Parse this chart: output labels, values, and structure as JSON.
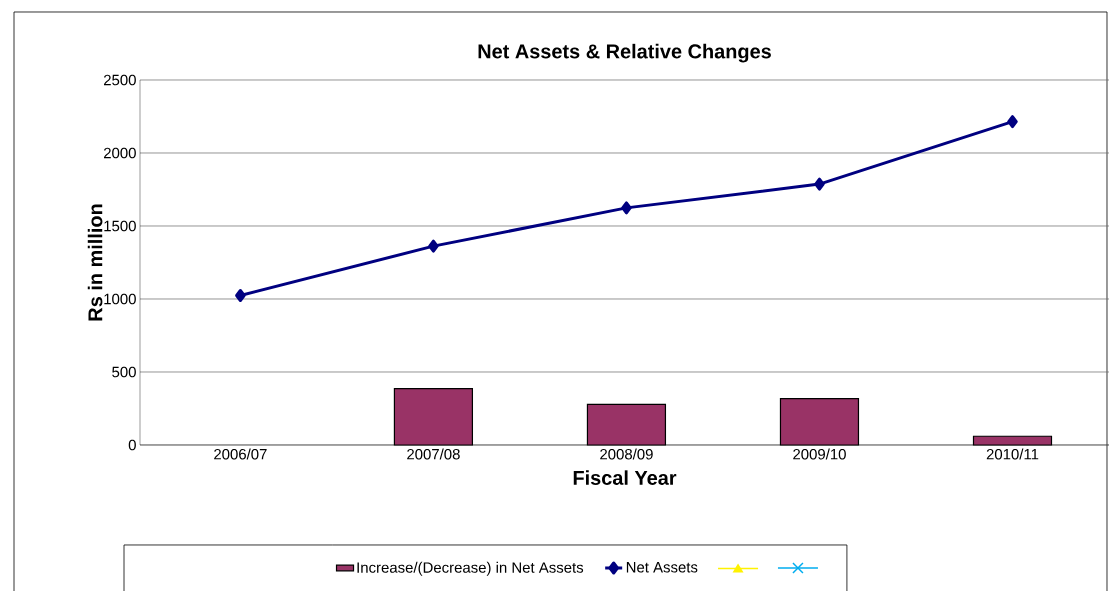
{
  "chart_data": {
    "type": "bar",
    "title": "Net Assets & Relative Changes",
    "xlabel": "Fiscal Year",
    "ylabel": "Rs in million",
    "categories": [
      "2006/07",
      "2007/08",
      "2008/09",
      "2009/10",
      "2010/11"
    ],
    "series": [
      {
        "name": "Increase/(Decrease) in Net Assets",
        "color": "#993366",
        "values": [
          null,
          386,
          278,
          317,
          60
        ]
      },
      {
        "name": "Net Assets",
        "type": "line",
        "color": "#000080",
        "marker": "diamond",
        "values": [
          1024,
          1362,
          1624,
          1787,
          2215
        ]
      }
    ],
    "ylim": [
      0,
      2500
    ],
    "yticks": [
      0,
      500,
      1000,
      1500,
      2000,
      2500
    ],
    "grid": "y",
    "legend": "bottom"
  }
}
